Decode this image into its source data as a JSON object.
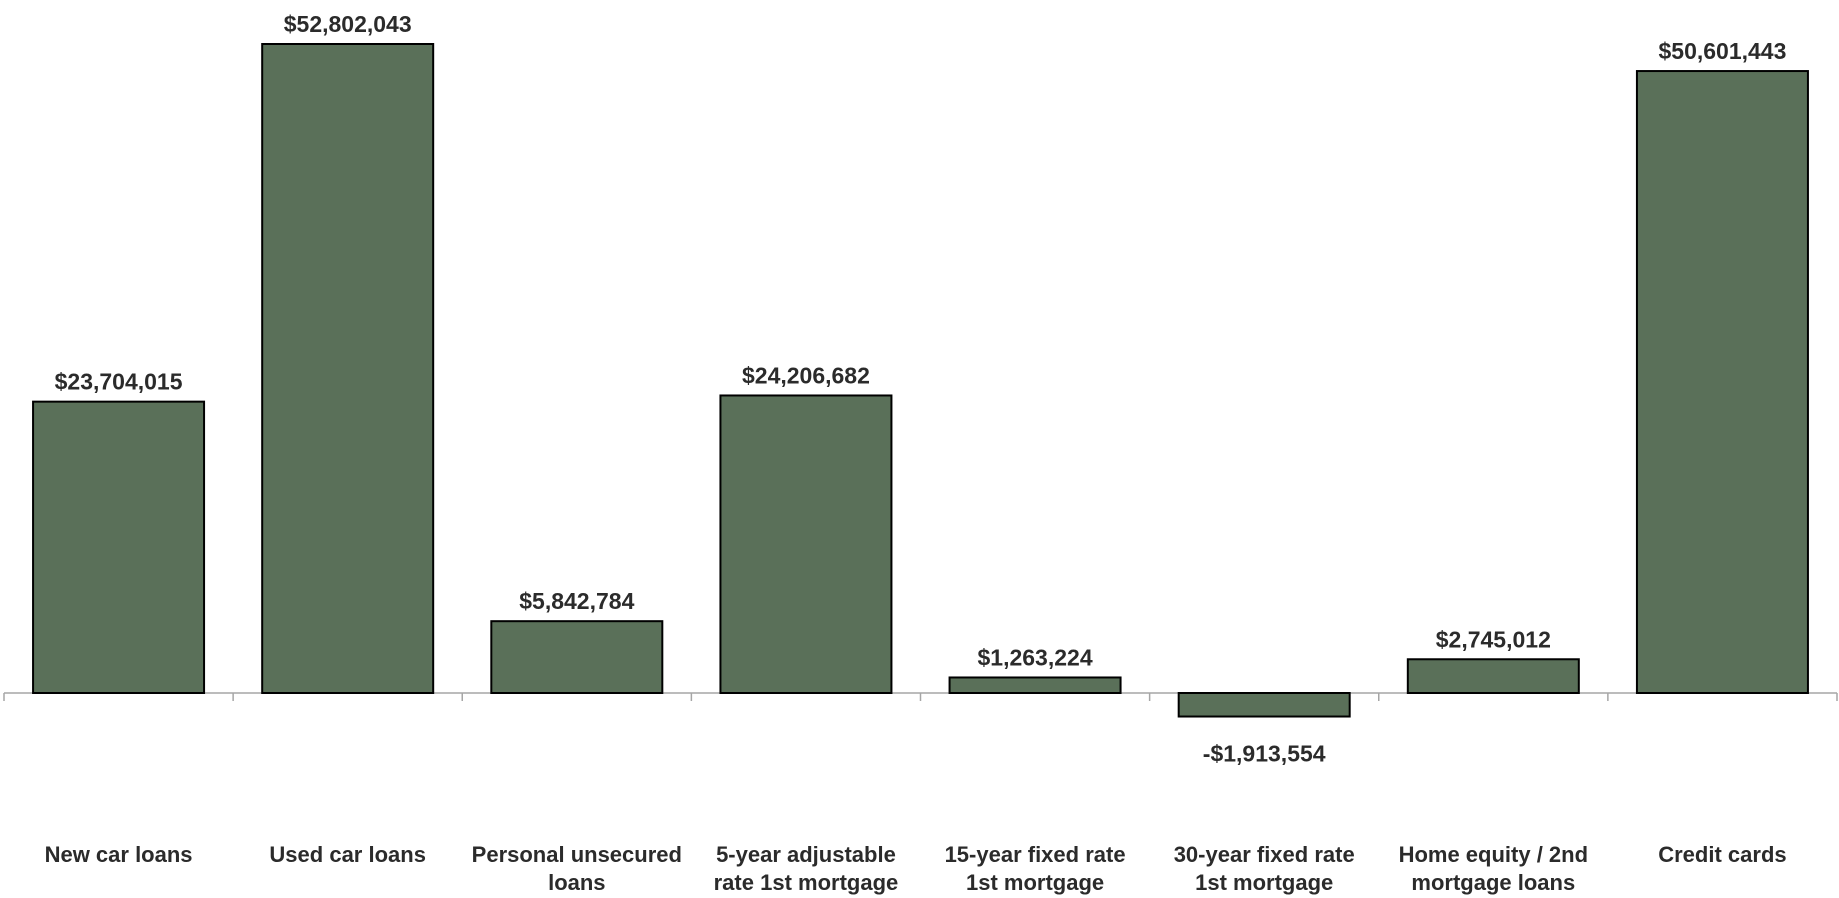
{
  "chart_data": {
    "type": "bar",
    "title": "",
    "xlabel": "",
    "ylabel": "",
    "categories": [
      [
        "New car loans"
      ],
      [
        "Used car loans"
      ],
      [
        "Personal unsecured",
        "loans"
      ],
      [
        "5-year adjustable",
        "rate 1st mortgage"
      ],
      [
        "15-year fixed rate",
        "1st mortgage"
      ],
      [
        "30-year fixed rate",
        "1st mortgage"
      ],
      [
        "Home equity / 2nd",
        "mortgage loans"
      ],
      [
        "Credit cards"
      ]
    ],
    "values": [
      23704015,
      52802043,
      5842784,
      24206682,
      1263224,
      -1913554,
      2745012,
      50601443
    ],
    "data_labels": [
      "$23,704,015",
      "$52,802,043",
      "$5,842,784",
      "$24,206,682",
      "$1,263,224",
      "-$1,913,554",
      "$2,745,012",
      "$50,601,443"
    ],
    "ylim": [
      -1913554,
      52802043
    ],
    "grid": false,
    "legend": "none",
    "colors": {
      "bar_fill": "#5a7059",
      "bar_stroke": "#000000",
      "axis": "#a6a6a6",
      "text": "#2b2b2b"
    }
  }
}
